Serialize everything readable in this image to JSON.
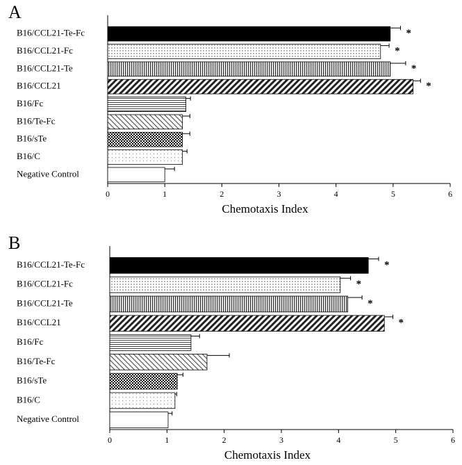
{
  "chart_data": [
    {
      "type": "bar",
      "orientation": "horizontal",
      "title": "A",
      "xlabel": "Chemotaxis Index",
      "categories": [
        "B16/CCL21-Te-Fc",
        "B16/CCL21-Fc",
        "B16/CCL21-Te",
        "B16/CCL21",
        "B16/Fc",
        "B16/Te-Fc",
        "B16/sTe",
        "B16/C",
        "Negative Control"
      ],
      "values": [
        4.95,
        4.78,
        4.95,
        5.35,
        1.37,
        1.31,
        1.31,
        1.31,
        1.0
      ],
      "errors": [
        0.18,
        0.15,
        0.27,
        0.13,
        0.08,
        0.13,
        0.13,
        0.08,
        0.17
      ],
      "significance": [
        "*",
        "*",
        "*",
        "*",
        null,
        null,
        null,
        null,
        null
      ],
      "xlim": [
        0,
        6
      ],
      "xticks": [
        0,
        1,
        2,
        3,
        4,
        5,
        6
      ],
      "color": "#000000"
    },
    {
      "type": "bar",
      "orientation": "horizontal",
      "title": "B",
      "xlabel": "Chemotaxis Index",
      "categories": [
        "B16/CCL21-Te-Fc",
        "B16/CCL21-Fc",
        "B16/CCL21-Te",
        "B16/CCL21",
        "B16/Fc",
        "B16/Te-Fc",
        "B16/sTe",
        "B16/C",
        "Negative Control"
      ],
      "values": [
        4.52,
        4.03,
        4.16,
        4.8,
        1.42,
        1.7,
        1.18,
        1.14,
        1.02
      ],
      "errors": [
        0.18,
        0.18,
        0.25,
        0.15,
        0.15,
        0.39,
        0.1,
        0.03,
        0.07
      ],
      "significance": [
        "*",
        "*",
        "*",
        "*",
        null,
        null,
        null,
        null,
        null
      ],
      "xlim": [
        0,
        6
      ],
      "xticks": [
        0,
        1,
        2,
        3,
        4,
        5,
        6
      ],
      "color": "#000000"
    }
  ]
}
